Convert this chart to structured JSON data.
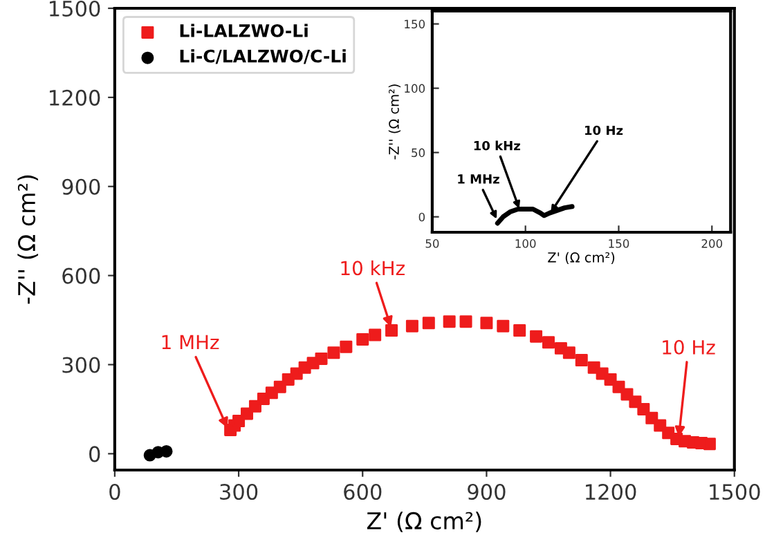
{
  "chart_data": [
    {
      "type": "scatter",
      "xlabel": "Z' (Ω cm²)",
      "ylabel": "-Z'' (Ω cm²)",
      "xlim": [
        0,
        1500
      ],
      "ylim": [
        -55,
        1500
      ],
      "xticks": [
        0,
        300,
        600,
        900,
        1200,
        1500
      ],
      "yticks": [
        0,
        300,
        600,
        900,
        1200,
        1500
      ],
      "legend": "top left",
      "grid": false,
      "series": [
        {
          "name": "Li-LALZWO-Li",
          "color": "#ee1c1c",
          "marker": "square",
          "x": [
            280,
            290,
            300,
            320,
            340,
            360,
            380,
            400,
            420,
            440,
            460,
            480,
            500,
            530,
            560,
            600,
            630,
            670,
            720,
            760,
            810,
            850,
            900,
            940,
            980,
            1020,
            1050,
            1080,
            1100,
            1130,
            1160,
            1180,
            1200,
            1220,
            1240,
            1260,
            1280,
            1300,
            1320,
            1340,
            1360,
            1380,
            1400,
            1420,
            1440
          ],
          "values": [
            80,
            95,
            110,
            135,
            160,
            185,
            205,
            225,
            250,
            270,
            290,
            305,
            320,
            340,
            360,
            385,
            400,
            415,
            430,
            440,
            445,
            445,
            440,
            430,
            415,
            395,
            375,
            355,
            340,
            315,
            290,
            270,
            250,
            225,
            200,
            175,
            150,
            120,
            95,
            70,
            50,
            42,
            38,
            36,
            33
          ]
        },
        {
          "name": "Li-C/LALZWO/C-Li",
          "color": "#000000",
          "marker": "circle",
          "x": [
            85,
            105,
            125
          ],
          "values": [
            -5,
            5,
            8
          ]
        }
      ],
      "annotations": [
        {
          "text": "1 MHz",
          "x": 275,
          "y": 80
        },
        {
          "text": "10 kHz",
          "x": 670,
          "y": 420
        },
        {
          "text": "10 Hz",
          "x": 1365,
          "y": 50
        }
      ]
    },
    {
      "type": "line",
      "xlabel": "Z' (Ω cm²)",
      "ylabel": "-Z'' (Ω cm²)",
      "xlim": [
        50,
        210
      ],
      "ylim": [
        -12,
        160
      ],
      "xticks": [
        50,
        100,
        150,
        200
      ],
      "yticks": [
        0,
        50,
        100,
        150
      ],
      "grid": false,
      "series": [
        {
          "color": "#000000",
          "x": [
            85,
            88,
            92,
            96,
            100,
            104,
            108,
            110,
            113,
            117,
            121,
            125
          ],
          "values": [
            -5,
            0,
            4,
            6,
            6,
            6,
            3,
            1,
            3,
            5,
            7,
            8
          ]
        }
      ],
      "annotations": [
        {
          "text": "1 MHz",
          "x": 85,
          "y": -3
        },
        {
          "text": "10 kHz",
          "x": 97,
          "y": 5
        },
        {
          "text": "10 Hz",
          "x": 113,
          "y": 2
        }
      ]
    }
  ]
}
